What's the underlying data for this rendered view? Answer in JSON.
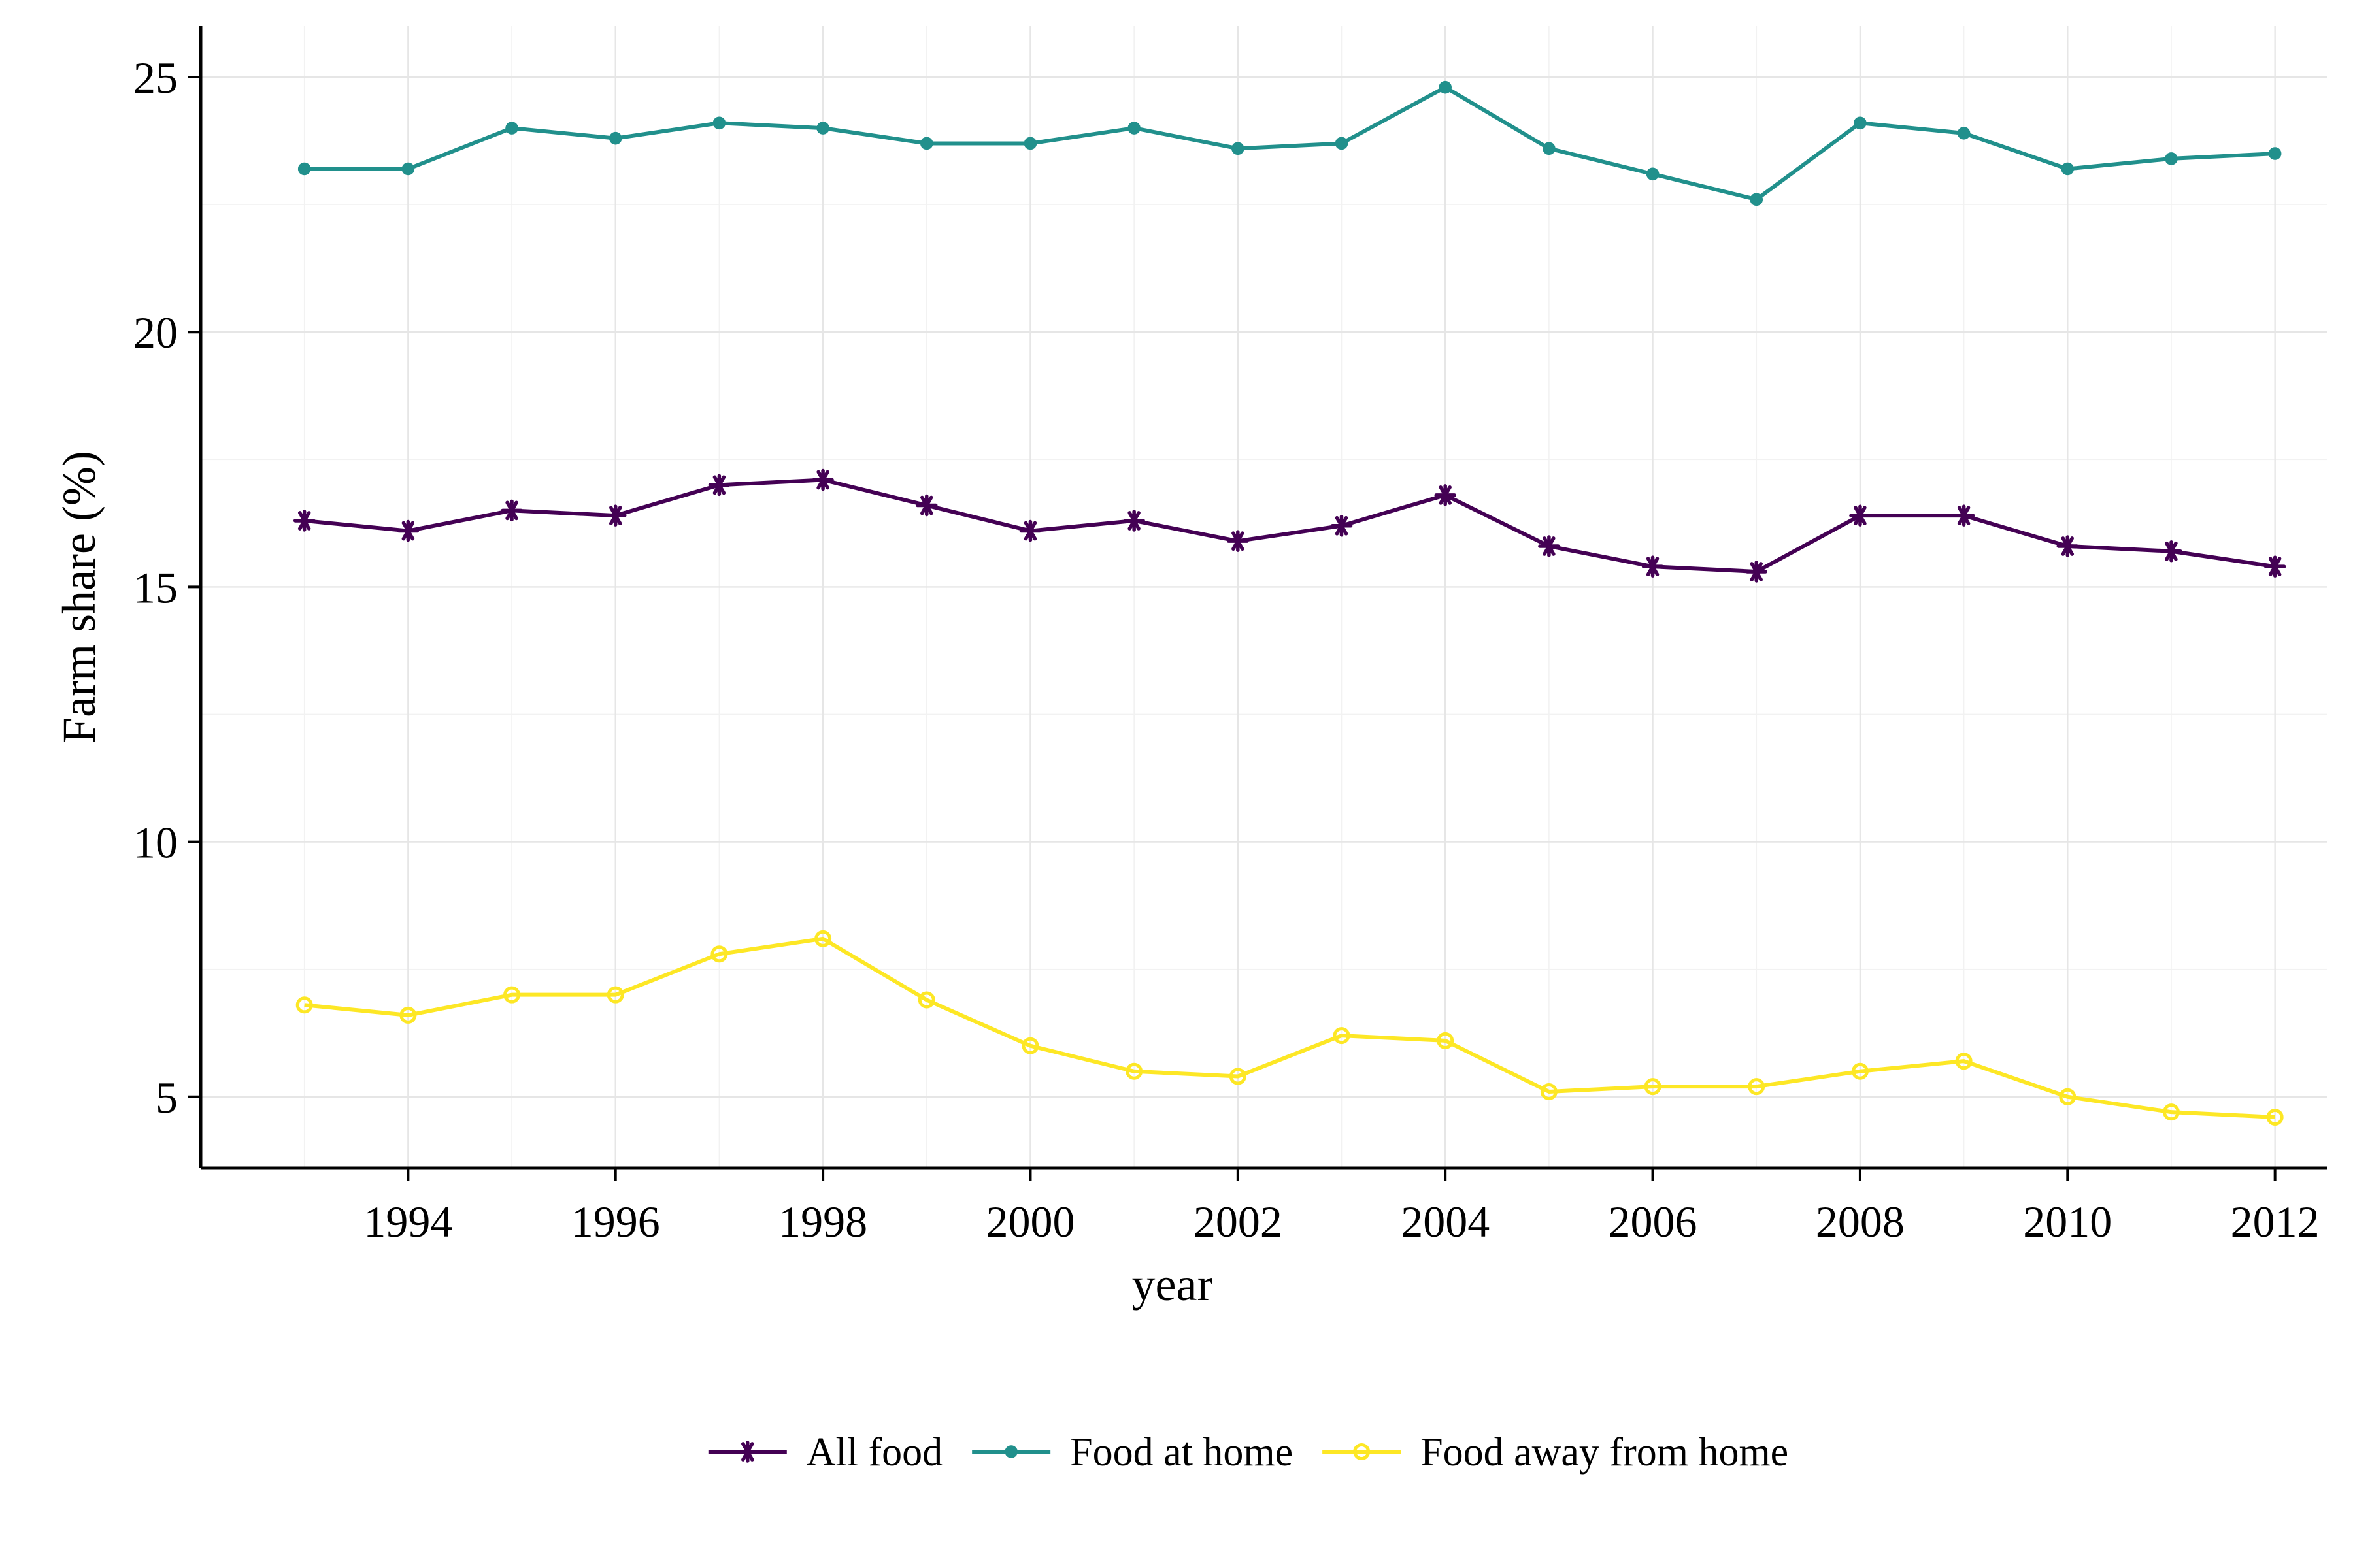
{
  "chart_data": {
    "type": "line",
    "title": "",
    "xlabel": "year",
    "ylabel": "Farm share (%)",
    "x": [
      1993,
      1994,
      1995,
      1996,
      1997,
      1998,
      1999,
      2000,
      2001,
      2002,
      2003,
      2004,
      2005,
      2006,
      2007,
      2008,
      2009,
      2010,
      2011,
      2012
    ],
    "xlim": [
      1992.0,
      2012.5
    ],
    "ylim": [
      3.6,
      26.0
    ],
    "xticks": [
      1994,
      1996,
      1998,
      2000,
      2002,
      2004,
      2006,
      2008,
      2010,
      2012
    ],
    "yticks": [
      5,
      10,
      15,
      20,
      25
    ],
    "grid": true,
    "legend_position": "bottom",
    "series": [
      {
        "name": "All food",
        "color": "#440154",
        "marker": "asterisk",
        "values": [
          16.3,
          16.1,
          16.5,
          16.4,
          17.0,
          17.1,
          16.6,
          16.1,
          16.3,
          15.9,
          16.2,
          16.8,
          15.8,
          15.4,
          15.3,
          16.4,
          16.4,
          15.8,
          15.7,
          15.4
        ]
      },
      {
        "name": "Food at home",
        "color": "#21908C",
        "marker": "dot",
        "values": [
          23.2,
          23.2,
          24.0,
          23.8,
          24.1,
          24.0,
          23.7,
          23.7,
          24.0,
          23.6,
          23.7,
          24.8,
          23.6,
          23.1,
          22.6,
          24.1,
          23.9,
          23.2,
          23.4,
          23.5
        ]
      },
      {
        "name": "Food away from home",
        "color": "#FDE725",
        "marker": "open-circle",
        "values": [
          6.8,
          6.6,
          7.0,
          7.0,
          7.8,
          8.1,
          6.9,
          6.0,
          5.5,
          5.4,
          6.2,
          6.1,
          5.1,
          5.2,
          5.2,
          5.5,
          5.7,
          5.0,
          4.7,
          4.6
        ]
      }
    ]
  }
}
